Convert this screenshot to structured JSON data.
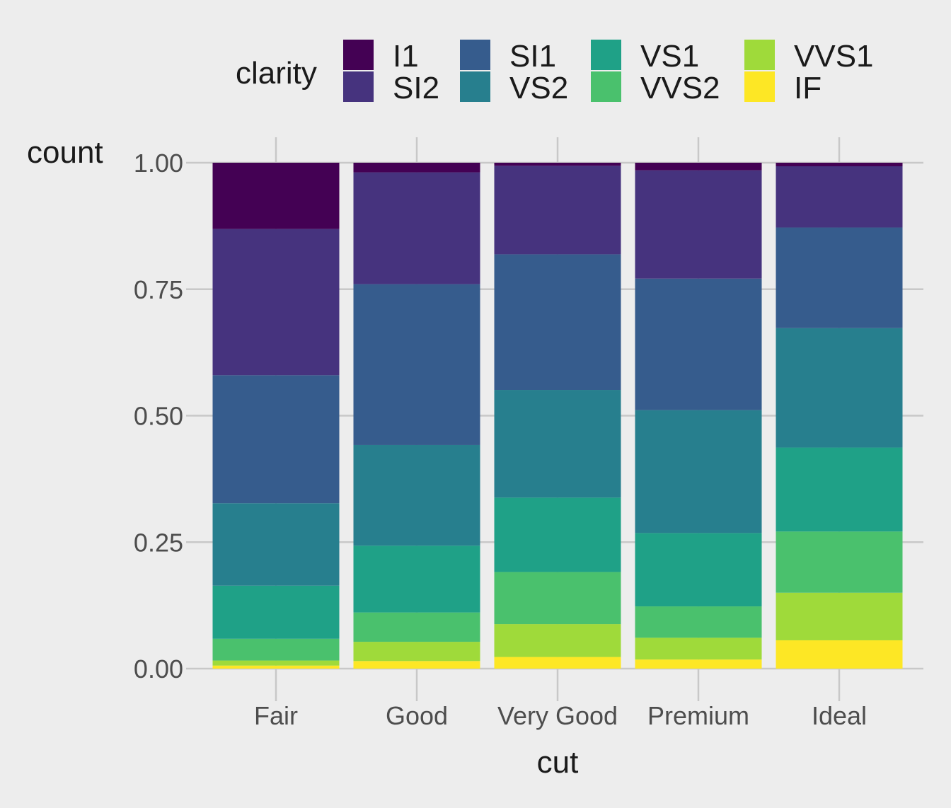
{
  "chart_data": {
    "type": "bar",
    "stacked": "fill",
    "title": "",
    "xlabel": "cut",
    "ylabel": "count",
    "ylim": [
      0,
      1
    ],
    "yticks": [
      "0.00",
      "0.25",
      "0.50",
      "0.75",
      "1.00"
    ],
    "grid": true,
    "legend_title": "clarity",
    "legend_position": "top",
    "categories": [
      "Fair",
      "Good",
      "Very Good",
      "Premium",
      "Ideal"
    ],
    "series": [
      {
        "name": "I1",
        "color": "#440154",
        "values": [
          0.131,
          0.019,
          0.006,
          0.015,
          0.007
        ]
      },
      {
        "name": "SI2",
        "color": "#46337E",
        "values": [
          0.289,
          0.221,
          0.175,
          0.214,
          0.121
        ]
      },
      {
        "name": "SI1",
        "color": "#365C8D",
        "values": [
          0.253,
          0.318,
          0.268,
          0.26,
          0.199
        ]
      },
      {
        "name": "VS2",
        "color": "#277F8E",
        "values": [
          0.163,
          0.199,
          0.213,
          0.243,
          0.236
        ]
      },
      {
        "name": "VS1",
        "color": "#1FA187",
        "values": [
          0.105,
          0.132,
          0.147,
          0.145,
          0.166
        ]
      },
      {
        "name": "VVS2",
        "color": "#4AC16D",
        "values": [
          0.043,
          0.058,
          0.103,
          0.062,
          0.121
        ]
      },
      {
        "name": "VVS1",
        "color": "#9FDA3A",
        "values": [
          0.01,
          0.038,
          0.065,
          0.043,
          0.094
        ]
      },
      {
        "name": "IF",
        "color": "#FDE725",
        "values": [
          0.006,
          0.015,
          0.023,
          0.018,
          0.056
        ]
      }
    ]
  }
}
